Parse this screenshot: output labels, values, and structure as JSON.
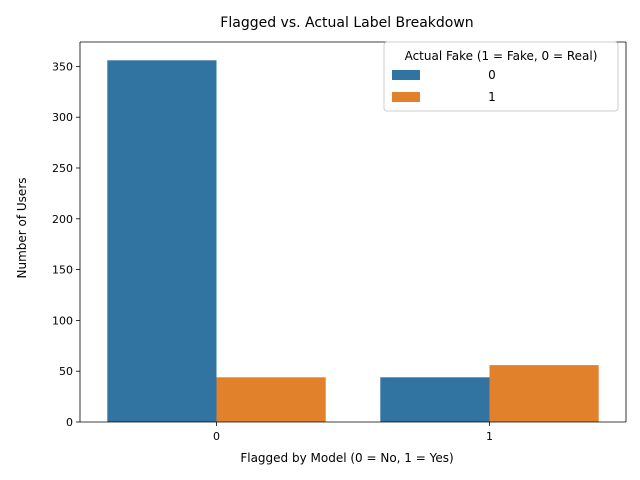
{
  "chart_data": {
    "type": "bar",
    "title": "Flagged vs. Actual Label Breakdown",
    "xlabel": "Flagged by Model (0 = No, 1 = Yes)",
    "ylabel": "Number of Users",
    "categories": [
      "0",
      "1"
    ],
    "series": [
      {
        "name": "0",
        "color": "#3274a1",
        "values": [
          356,
          44
        ]
      },
      {
        "name": "1",
        "color": "#e1812c",
        "values": [
          44,
          56
        ]
      }
    ],
    "ylim": [
      0,
      374
    ],
    "yticks": [
      0,
      50,
      100,
      150,
      200,
      250,
      300,
      350
    ],
    "grid": false,
    "legend": {
      "title": "Actual Fake (1 = Fake, 0 = Real)",
      "placement": "top-right"
    }
  }
}
